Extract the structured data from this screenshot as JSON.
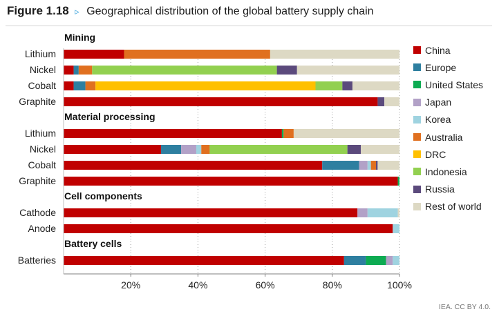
{
  "figure": {
    "number": "Figure 1.18",
    "arrow": "▹",
    "title": "Geographical distribution of the global battery supply chain",
    "credit": "IEA. CC BY 4.0."
  },
  "colors": {
    "China": "#c00000",
    "Europe": "#2e7fa0",
    "United States": "#0dab52",
    "Japan": "#b2a1c7",
    "Korea": "#9fd3e0",
    "Australia": "#e07020",
    "DRC": "#ffc000",
    "Indonesia": "#92d050",
    "Russia": "#5b4a7c",
    "Rest of world": "#ddd9c4"
  },
  "chart_data": {
    "type": "bar",
    "orientation": "horizontal",
    "stacked": true,
    "normalized": true,
    "xlim": [
      0,
      100
    ],
    "xticks": [
      20,
      40,
      60,
      80,
      100
    ],
    "xtick_labels": [
      "20%",
      "40%",
      "60%",
      "80%",
      "100%"
    ],
    "legend_position": "right",
    "series_order": [
      "China",
      "Europe",
      "United States",
      "Japan",
      "Korea",
      "Australia",
      "DRC",
      "Indonesia",
      "Russia",
      "Rest of world"
    ],
    "groups": [
      {
        "name": "Mining",
        "rows": [
          {
            "label": "Lithium",
            "values": {
              "China": 18,
              "Australia": 43.5,
              "Rest of world": 38.5
            }
          },
          {
            "label": "Nickel",
            "values": {
              "China": 3,
              "Europe": 1.5,
              "Australia": 4,
              "Indonesia": 55,
              "Russia": 6,
              "Rest of world": 30.5
            }
          },
          {
            "label": "Cobalt",
            "values": {
              "China": 3,
              "Europe": 3.5,
              "Australia": 3,
              "DRC": 65.5,
              "Indonesia": 8,
              "Russia": 3,
              "Rest of world": 14
            }
          },
          {
            "label": "Graphite",
            "values": {
              "China": 93.5,
              "Russia": 2,
              "Rest of world": 4.5
            }
          }
        ]
      },
      {
        "name": "Material processing",
        "rows": [
          {
            "label": "Lithium",
            "values": {
              "China": 65,
              "United States": 0.5,
              "Australia": 3,
              "Rest of world": 31.5
            }
          },
          {
            "label": "Nickel",
            "values": {
              "China": 29,
              "Europe": 6,
              "Japan": 4.5,
              "Korea": 1.5,
              "Australia": 2.5,
              "Indonesia": 41,
              "Russia": 4,
              "Rest of world": 11.5
            }
          },
          {
            "label": "Cobalt",
            "values": {
              "China": 77,
              "Europe": 11,
              "Japan": 2.5,
              "Korea": 1,
              "Australia": 1.5,
              "Russia": 0.5,
              "Rest of world": 6.5
            }
          },
          {
            "label": "Graphite",
            "values": {
              "China": 99.5,
              "United States": 0.5
            }
          }
        ]
      },
      {
        "name": "Cell components",
        "rows": [
          {
            "label": "Cathode",
            "values": {
              "China": 87.5,
              "Japan": 3,
              "Korea": 9,
              "Rest of world": 0.5
            }
          },
          {
            "label": "Anode",
            "values": {
              "China": 98,
              "Korea": 2
            }
          }
        ]
      },
      {
        "name": "Battery cells",
        "rows": [
          {
            "label": "Batteries",
            "values": {
              "China": 83.5,
              "Europe": 6.5,
              "United States": 6,
              "Japan": 2,
              "Korea": 2
            }
          }
        ]
      }
    ]
  }
}
